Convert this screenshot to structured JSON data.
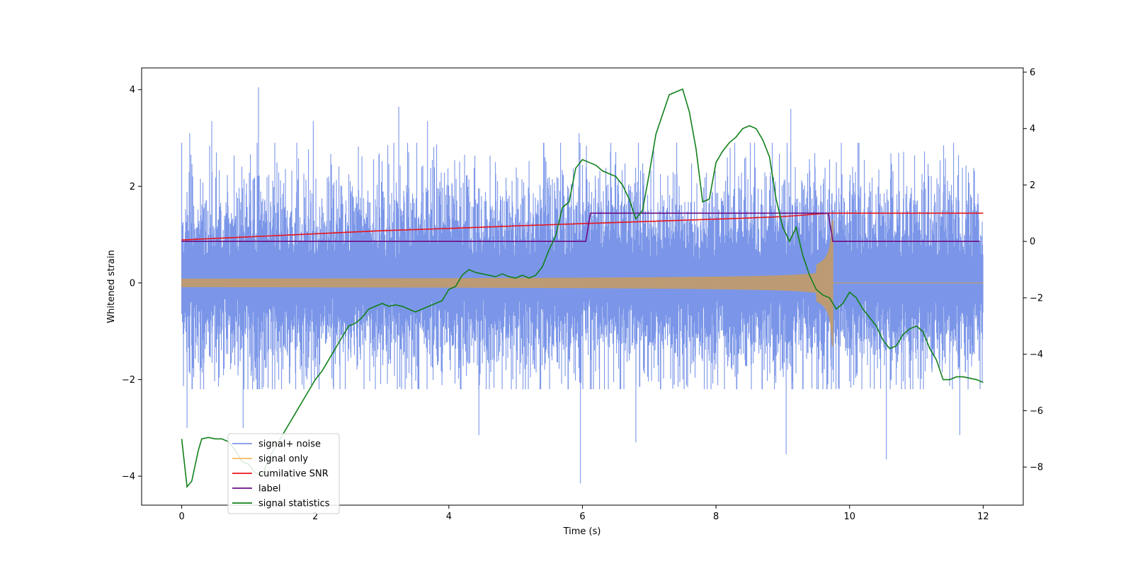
{
  "chart_data": {
    "type": "line",
    "title": "",
    "xlabel": "Time (s)",
    "ylabel": "Whitened strain",
    "y2label": "",
    "xlim": [
      -0.6,
      12.6
    ],
    "ylim": [
      -4.6,
      4.45
    ],
    "y2lim": [
      -9.35,
      6.15
    ],
    "xticks": [
      0,
      2,
      4,
      6,
      8,
      10,
      12
    ],
    "yticks": [
      -4,
      -2,
      0,
      2,
      4
    ],
    "y2ticks": [
      -8,
      -6,
      -4,
      -2,
      0,
      2,
      4,
      6
    ],
    "grid": false,
    "legend_position": "lower-left",
    "series": [
      {
        "name": "signal+ noise",
        "axis": "left",
        "color": "#7b96e8",
        "style": "dense-noise",
        "x_range": [
          0,
          12
        ],
        "typical_range": [
          -1.9,
          2.4
        ],
        "spikes": [
          {
            "x": 0.12,
            "y": 3.1
          },
          {
            "x": 0.45,
            "y": 3.35
          },
          {
            "x": 1.15,
            "y": 4.05
          },
          {
            "x": 1.97,
            "y": 3.35
          },
          {
            "x": 3.25,
            "y": 3.65
          },
          {
            "x": 3.68,
            "y": 3.35
          },
          {
            "x": 5.95,
            "y": 3.1
          },
          {
            "x": 9.12,
            "y": 3.6
          },
          {
            "x": 0.08,
            "y": -3.0
          },
          {
            "x": 0.92,
            "y": -3.0
          },
          {
            "x": 4.45,
            "y": -3.15
          },
          {
            "x": 5.97,
            "y": -4.15
          },
          {
            "x": 6.8,
            "y": -3.3
          },
          {
            "x": 9.05,
            "y": -3.55
          },
          {
            "x": 10.55,
            "y": -3.65
          },
          {
            "x": 11.65,
            "y": -3.15
          }
        ]
      },
      {
        "name": "signal only",
        "axis": "left",
        "color": "#f7b95e",
        "style": "chirp",
        "start_amplitude": 0.08,
        "merger_time": 9.75,
        "merger_amplitude": 1.3,
        "post_merger": 0.0
      },
      {
        "name": "cumilative SNR",
        "axis": "right",
        "color": "#e8141c",
        "x": [
          0,
          1,
          2,
          3,
          4,
          5,
          6,
          7,
          8,
          8.5,
          9,
          9.3,
          9.5,
          9.7,
          9.75,
          12
        ],
        "values": [
          0.05,
          0.16,
          0.27,
          0.38,
          0.46,
          0.55,
          0.63,
          0.71,
          0.79,
          0.83,
          0.88,
          0.93,
          0.97,
          1.0,
          1.0,
          1.0
        ]
      },
      {
        "name": "label",
        "axis": "right",
        "color": "#6a0d83",
        "x": [
          0,
          6.05,
          6.12,
          9.68,
          9.75,
          11.95
        ],
        "values": [
          0,
          0,
          1,
          1,
          0,
          0
        ]
      },
      {
        "name": "signal statistics",
        "axis": "right",
        "color": "#11801a",
        "x": [
          0,
          0.08,
          0.15,
          0.25,
          0.3,
          0.4,
          0.5,
          0.6,
          0.7,
          0.8,
          0.9,
          1.0,
          1.1,
          1.2,
          1.35,
          1.5,
          1.6,
          1.7,
          1.8,
          1.9,
          2.0,
          2.1,
          2.2,
          2.3,
          2.4,
          2.5,
          2.6,
          2.7,
          2.8,
          2.9,
          3.0,
          3.1,
          3.2,
          3.3,
          3.4,
          3.5,
          3.6,
          3.7,
          3.8,
          3.9,
          4.0,
          4.1,
          4.2,
          4.3,
          4.4,
          4.5,
          4.6,
          4.7,
          4.8,
          4.9,
          5.0,
          5.1,
          5.2,
          5.3,
          5.4,
          5.5,
          5.6,
          5.7,
          5.8,
          5.9,
          6.0,
          6.1,
          6.2,
          6.3,
          6.4,
          6.5,
          6.6,
          6.7,
          6.8,
          6.9,
          7.0,
          7.1,
          7.2,
          7.3,
          7.4,
          7.5,
          7.6,
          7.7,
          7.8,
          7.9,
          8.0,
          8.1,
          8.2,
          8.3,
          8.4,
          8.5,
          8.6,
          8.7,
          8.8,
          8.9,
          9.0,
          9.1,
          9.2,
          9.3,
          9.4,
          9.5,
          9.6,
          9.7,
          9.8,
          9.9,
          10.0,
          10.1,
          10.2,
          10.3,
          10.4,
          10.5,
          10.6,
          10.7,
          10.8,
          10.9,
          11.0,
          11.1,
          11.2,
          11.3,
          11.4,
          11.5,
          11.6,
          11.7,
          11.8,
          11.9,
          12.0
        ],
        "values": [
          -7.0,
          -8.7,
          -8.5,
          -7.4,
          -7.0,
          -6.95,
          -7.0,
          -7.0,
          -7.1,
          -7.4,
          -7.8,
          -7.9,
          -8.2,
          -8.3,
          -7.5,
          -6.9,
          -6.5,
          -6.1,
          -5.7,
          -5.3,
          -4.9,
          -4.6,
          -4.2,
          -3.8,
          -3.4,
          -3.0,
          -2.9,
          -2.7,
          -2.4,
          -2.3,
          -2.2,
          -2.3,
          -2.25,
          -2.3,
          -2.4,
          -2.5,
          -2.4,
          -2.3,
          -2.2,
          -2.1,
          -1.7,
          -1.6,
          -1.2,
          -1.0,
          -1.1,
          -1.15,
          -1.2,
          -1.25,
          -1.15,
          -1.25,
          -1.3,
          -1.2,
          -1.3,
          -1.2,
          -0.9,
          -0.3,
          0.2,
          1.2,
          1.4,
          2.6,
          2.9,
          2.8,
          2.7,
          2.5,
          2.4,
          2.3,
          2.0,
          1.5,
          0.8,
          1.1,
          2.4,
          3.8,
          4.5,
          5.2,
          5.3,
          5.4,
          4.6,
          3.3,
          1.4,
          1.5,
          2.8,
          3.2,
          3.5,
          3.7,
          4.0,
          4.1,
          4.0,
          3.6,
          3.0,
          1.5,
          0.5,
          0.0,
          0.5,
          -0.5,
          -1.2,
          -1.7,
          -1.9,
          -2.0,
          -2.4,
          -2.2,
          -1.8,
          -2.0,
          -2.4,
          -2.7,
          -3.0,
          -3.5,
          -3.8,
          -3.7,
          -3.3,
          -3.1,
          -3.0,
          -3.2,
          -3.8,
          -4.2,
          -4.9,
          -4.9,
          -4.8,
          -4.8,
          -4.85,
          -4.9,
          -5.0
        ]
      }
    ]
  }
}
